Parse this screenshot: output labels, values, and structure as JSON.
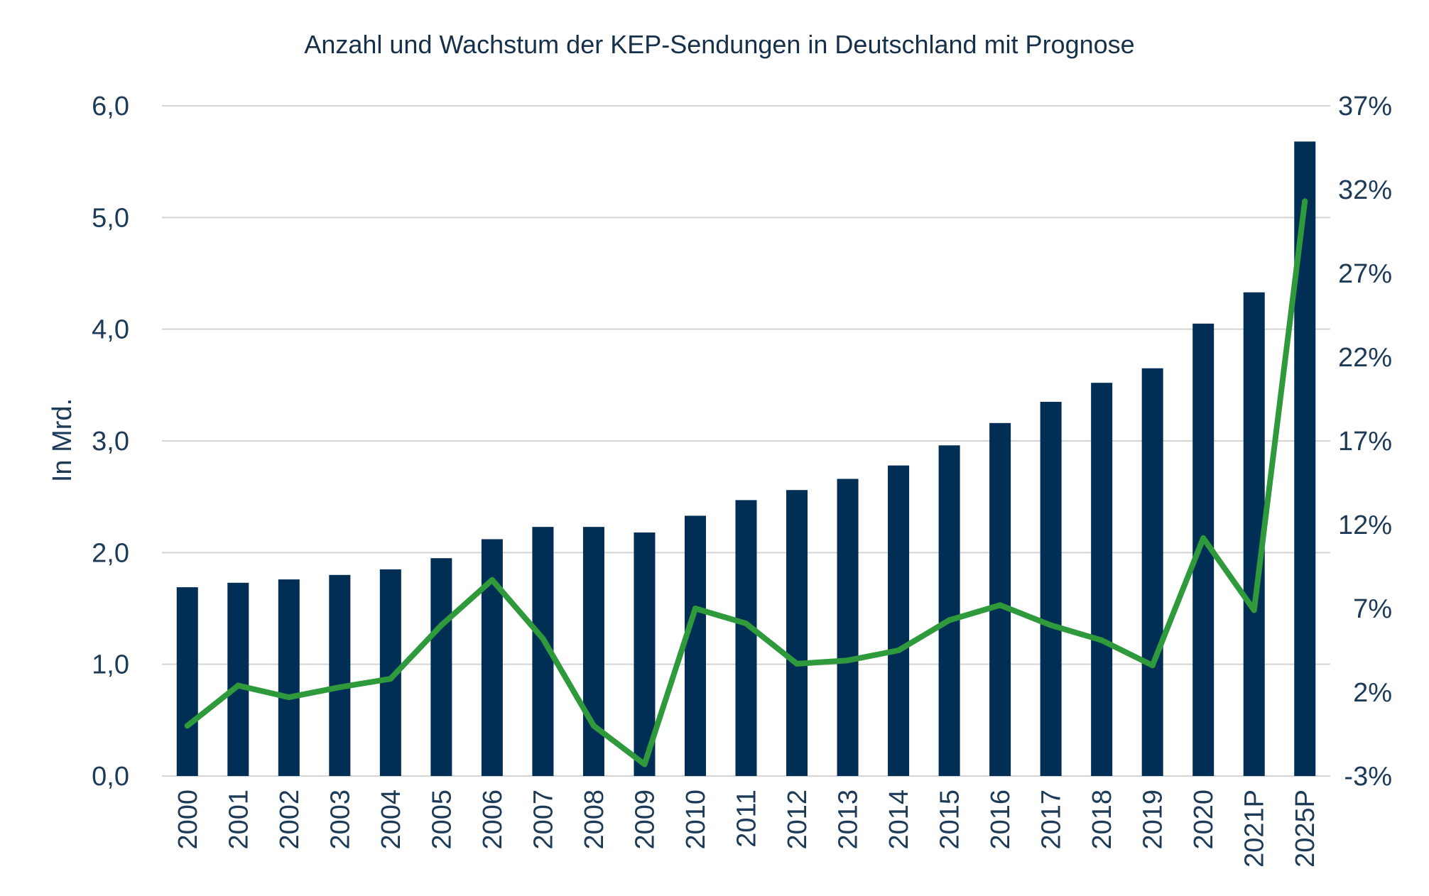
{
  "chart_data": {
    "type": "bar",
    "title": "Anzahl und Wachstum der KEP-Sendungen in Deutschland mit Prognose",
    "ylabel": "In Mrd.",
    "categories": [
      "2000",
      "2001",
      "2002",
      "2003",
      "2004",
      "2005",
      "2006",
      "2007",
      "2008",
      "2009",
      "2010",
      "2011",
      "2012",
      "2013",
      "2014",
      "2015",
      "2016",
      "2017",
      "2018",
      "2019",
      "2020",
      "2021P",
      "2025P"
    ],
    "ylim": [
      0,
      6
    ],
    "y_ticks": [
      "0,0",
      "1,0",
      "2,0",
      "3,0",
      "4,0",
      "5,0",
      "6,0"
    ],
    "y2lim": [
      -3,
      37
    ],
    "y2_ticks": [
      "-3%",
      "2%",
      "7%",
      "12%",
      "17%",
      "22%",
      "27%",
      "32%",
      "37%"
    ],
    "grid": true,
    "series": [
      {
        "type": "bar",
        "color": "#002e55",
        "values": [
          1.69,
          1.73,
          1.76,
          1.8,
          1.85,
          1.95,
          2.12,
          2.23,
          2.23,
          2.18,
          2.33,
          2.47,
          2.56,
          2.66,
          2.78,
          2.96,
          3.16,
          3.35,
          3.52,
          3.65,
          4.05,
          4.33,
          5.68
        ]
      },
      {
        "type": "line",
        "axis": "right",
        "color": "#2e9a3c",
        "values": [
          0.0,
          2.4,
          1.7,
          2.3,
          2.8,
          6.0,
          8.7,
          5.2,
          0.0,
          -2.3,
          7.0,
          6.1,
          3.7,
          3.9,
          4.5,
          6.3,
          7.2,
          6.0,
          5.1,
          3.6,
          11.2,
          6.9,
          31.3
        ]
      }
    ]
  }
}
